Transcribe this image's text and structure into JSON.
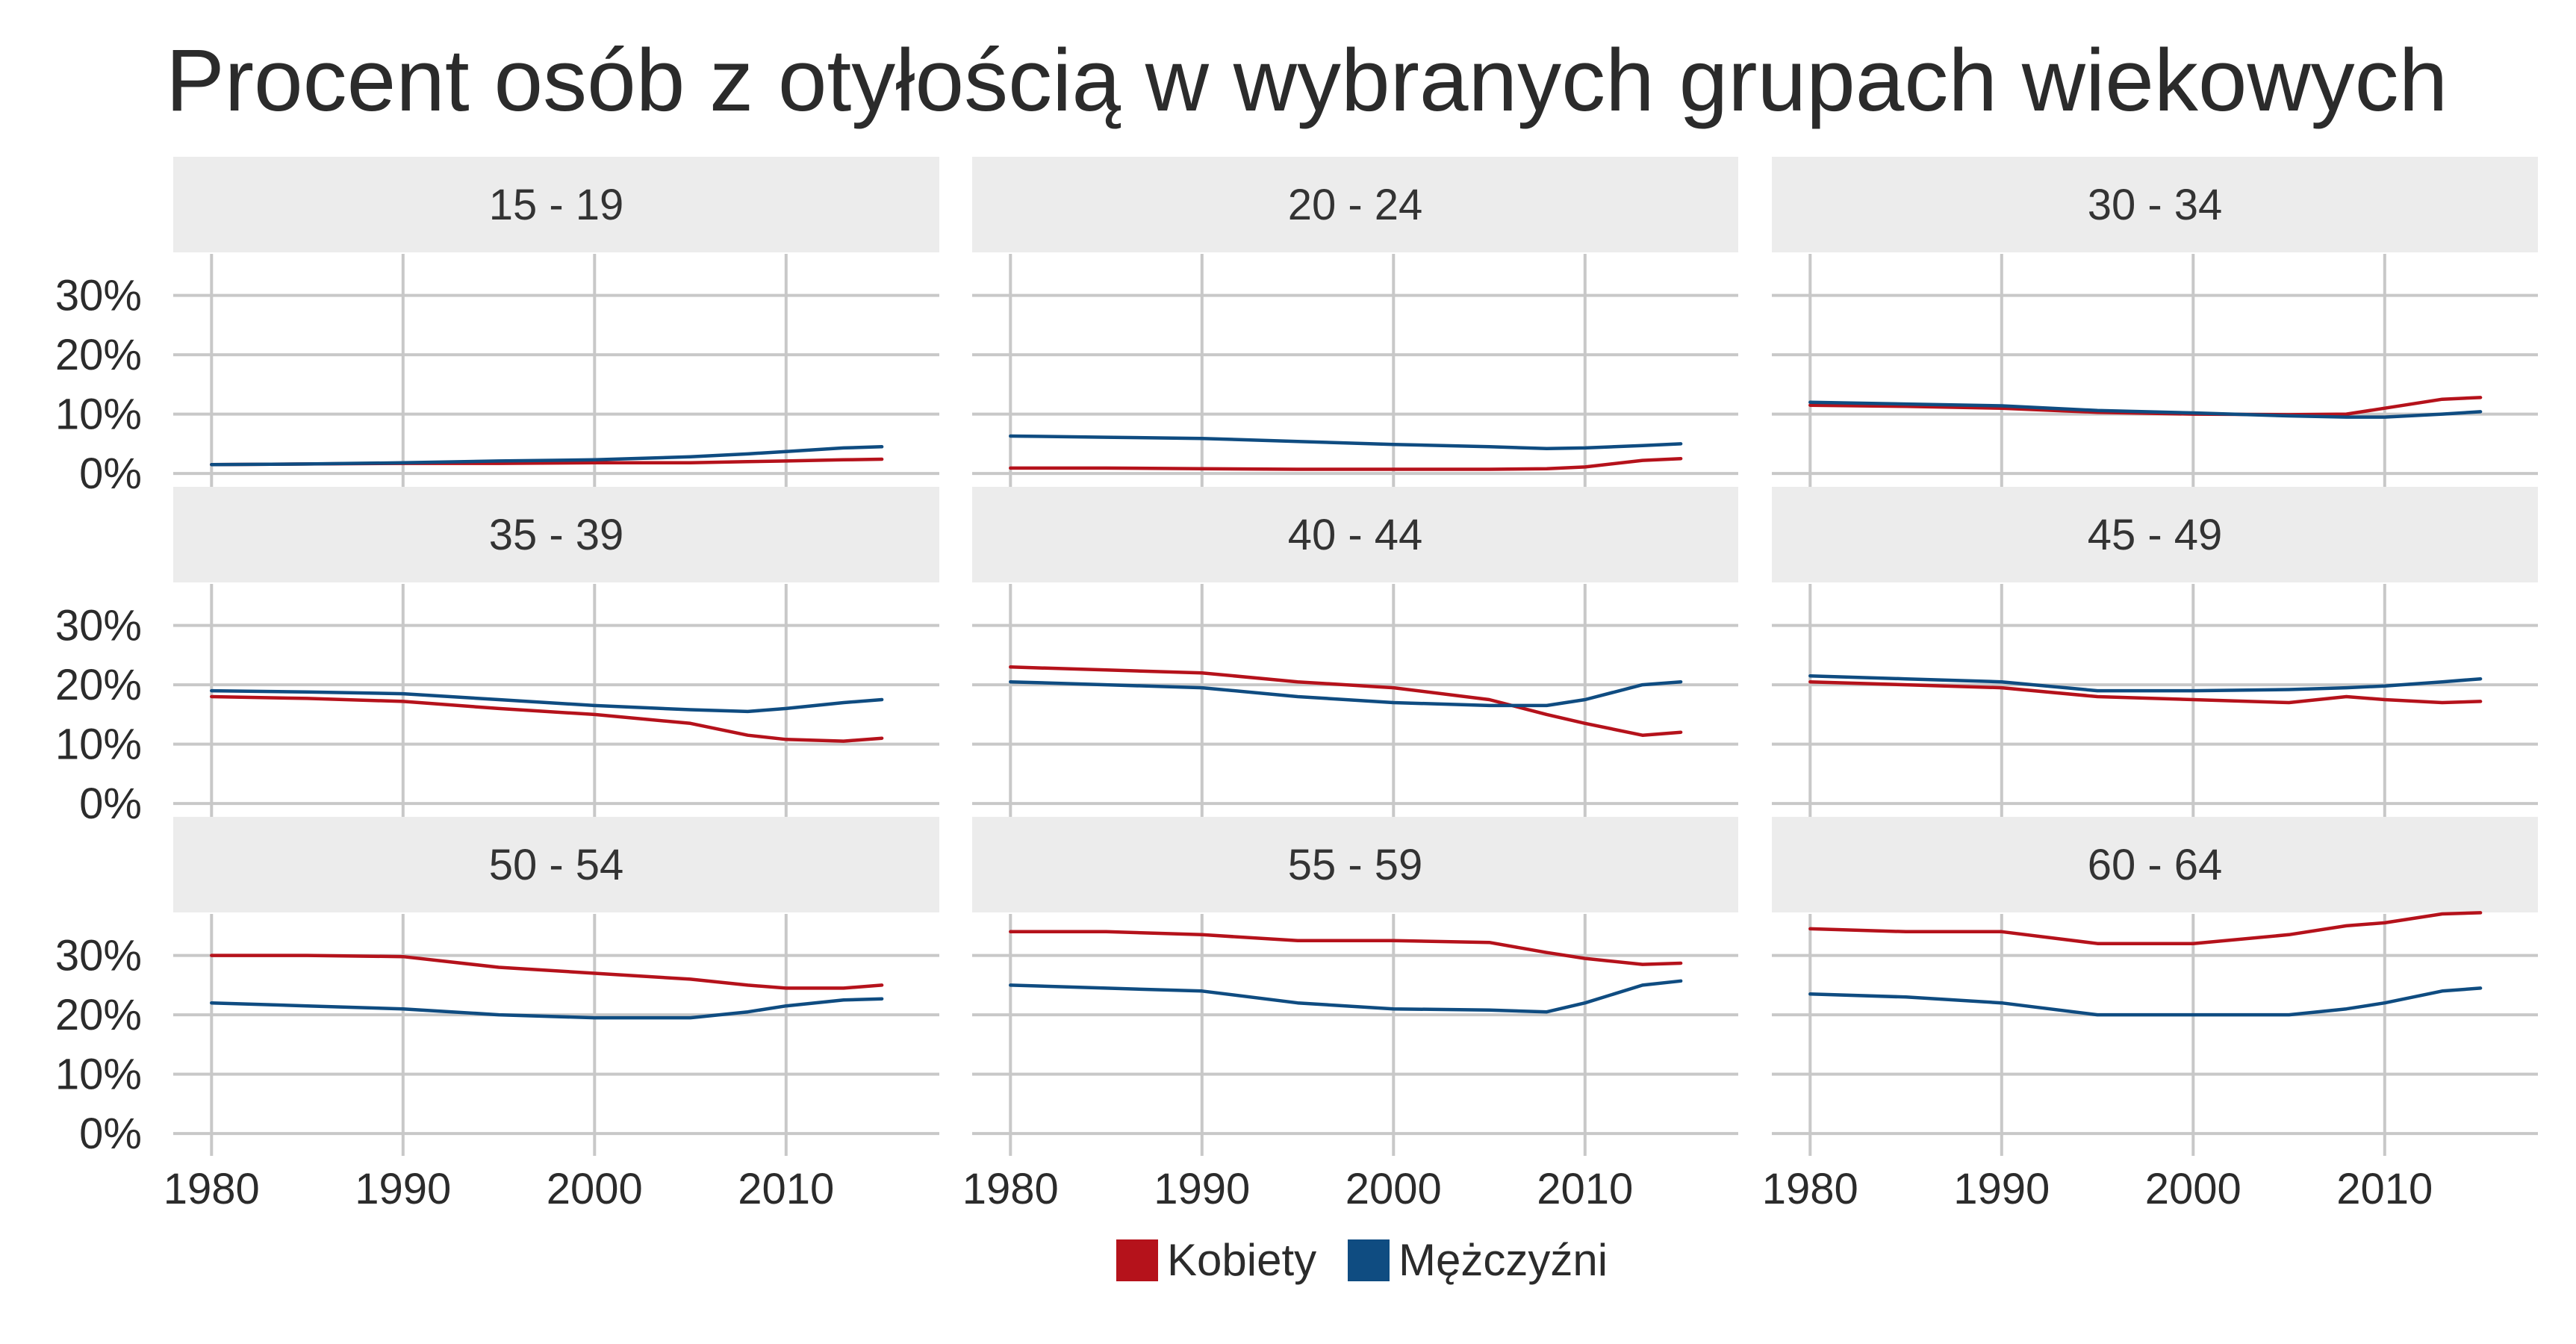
{
  "title": "Procent osób z otyłością w wybranych grupach wiekowych",
  "colors": {
    "kobiety": "#b5121b",
    "mezczyzni": "#0f4c81",
    "strip_bg": "#ececec",
    "grid": "#c8c8c8"
  },
  "legend": [
    {
      "label": "Kobiety",
      "color": "#b5121b"
    },
    {
      "label": "Mężczyźni",
      "color": "#0f4c81"
    }
  ],
  "chart_data": {
    "type": "line",
    "layout": "facets-3x3",
    "x": [
      1980,
      1985,
      1990,
      1995,
      2000,
      2005,
      2008,
      2010,
      2013,
      2015
    ],
    "x_ticks": [
      1980,
      1990,
      2000,
      2010
    ],
    "x_tick_labels": [
      "1980",
      "1990",
      "2000",
      "2010"
    ],
    "xlim": [
      1978,
      2018
    ],
    "y_ticks": [
      0,
      10,
      20,
      30
    ],
    "y_tick_labels": [
      "0%",
      "10%",
      "20%",
      "30%"
    ],
    "ylim": [
      -2,
      37
    ],
    "grid": true,
    "legend_position": "bottom",
    "facets": [
      {
        "label": "15 - 19",
        "series": [
          {
            "name": "Kobiety",
            "values": [
              1.5,
              1.6,
              1.7,
              1.7,
              1.8,
              1.8,
              2.0,
              2.1,
              2.3,
              2.4
            ]
          },
          {
            "name": "Mężczyźni",
            "values": [
              1.5,
              1.6,
              1.8,
              2.1,
              2.3,
              2.8,
              3.3,
              3.7,
              4.3,
              4.5
            ]
          }
        ]
      },
      {
        "label": "20 - 24",
        "series": [
          {
            "name": "Kobiety",
            "values": [
              0.9,
              0.9,
              0.8,
              0.7,
              0.7,
              0.7,
              0.8,
              1.1,
              2.2,
              2.5
            ]
          },
          {
            "name": "Mężczyźni",
            "values": [
              6.3,
              6.1,
              5.9,
              5.4,
              4.9,
              4.5,
              4.2,
              4.3,
              4.7,
              5.0
            ]
          }
        ]
      },
      {
        "label": "30 - 34",
        "series": [
          {
            "name": "Kobiety",
            "values": [
              11.5,
              11.3,
              11.0,
              10.3,
              10.0,
              9.9,
              10.0,
              11.0,
              12.5,
              12.8
            ]
          },
          {
            "name": "Mężczyźni",
            "values": [
              12.0,
              11.7,
              11.4,
              10.6,
              10.2,
              9.7,
              9.5,
              9.5,
              10.0,
              10.4
            ]
          }
        ]
      },
      {
        "label": "35 - 39",
        "series": [
          {
            "name": "Kobiety",
            "values": [
              18.0,
              17.7,
              17.2,
              16.0,
              15.0,
              13.5,
              11.5,
              10.8,
              10.5,
              11.0
            ]
          },
          {
            "name": "Mężczyźni",
            "values": [
              19.0,
              18.8,
              18.5,
              17.5,
              16.5,
              15.8,
              15.5,
              16.0,
              17.0,
              17.5
            ]
          }
        ]
      },
      {
        "label": "40 - 44",
        "series": [
          {
            "name": "Kobiety",
            "values": [
              23.0,
              22.5,
              22.0,
              20.5,
              19.5,
              17.5,
              15.0,
              13.5,
              11.5,
              12.0
            ]
          },
          {
            "name": "Mężczyźni",
            "values": [
              20.5,
              20.0,
              19.5,
              18.0,
              17.0,
              16.5,
              16.5,
              17.5,
              20.0,
              20.5
            ]
          }
        ]
      },
      {
        "label": "45 - 49",
        "series": [
          {
            "name": "Kobiety",
            "values": [
              20.5,
              20.0,
              19.5,
              18.0,
              17.5,
              17.0,
              18.0,
              17.5,
              17.0,
              17.2
            ]
          },
          {
            "name": "Mężczyźni",
            "values": [
              21.5,
              21.0,
              20.5,
              19.0,
              19.0,
              19.2,
              19.5,
              19.8,
              20.5,
              21.0
            ]
          }
        ]
      },
      {
        "label": "50 - 54",
        "series": [
          {
            "name": "Kobiety",
            "values": [
              30.0,
              30.0,
              29.8,
              28.0,
              27.0,
              26.0,
              25.0,
              24.5,
              24.5,
              25.0
            ]
          },
          {
            "name": "Mężczyźni",
            "values": [
              22.0,
              21.5,
              21.0,
              20.0,
              19.5,
              19.5,
              20.5,
              21.5,
              22.5,
              22.7
            ]
          }
        ]
      },
      {
        "label": "55 - 59",
        "series": [
          {
            "name": "Kobiety",
            "values": [
              34.0,
              34.0,
              33.5,
              32.5,
              32.5,
              32.2,
              30.5,
              29.5,
              28.5,
              28.7
            ]
          },
          {
            "name": "Mężczyźni",
            "values": [
              25.0,
              24.5,
              24.0,
              22.0,
              21.0,
              20.8,
              20.5,
              22.0,
              25.0,
              25.7
            ]
          }
        ]
      },
      {
        "label": "60 - 64",
        "series": [
          {
            "name": "Kobiety",
            "values": [
              34.5,
              34.0,
              34.0,
              32.0,
              32.0,
              33.5,
              35.0,
              35.5,
              37.0,
              37.2
            ]
          },
          {
            "name": "Mężczyźni",
            "values": [
              23.5,
              23.0,
              22.0,
              20.0,
              20.0,
              20.0,
              21.0,
              22.0,
              24.0,
              24.5
            ]
          }
        ]
      }
    ]
  }
}
